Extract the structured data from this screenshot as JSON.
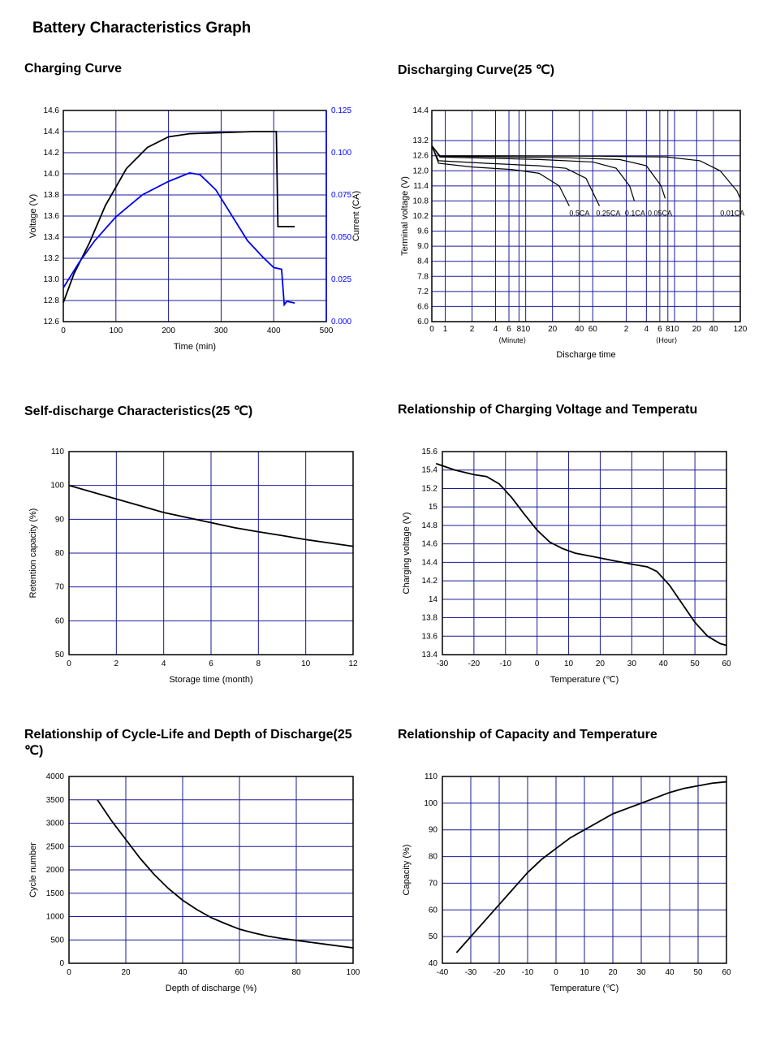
{
  "mainTitle": "Battery Characteristics Graph",
  "gridColor": "#1a1a99",
  "charts": {
    "charging": {
      "title": "Charging Curve",
      "type": "line-dual-axis",
      "xlabel": "Time (min)",
      "xlim": [
        0,
        500
      ],
      "xticks": [
        0,
        100,
        200,
        300,
        400,
        500
      ],
      "y1label": "Voltage (V)",
      "y1lim": [
        12.6,
        14.6
      ],
      "y1ticks": [
        12.6,
        12.8,
        13.0,
        13.2,
        13.4,
        13.6,
        13.8,
        14.0,
        14.2,
        14.4,
        14.6
      ],
      "y2label": "Current (CA)",
      "y2lim": [
        0,
        0.125
      ],
      "y2ticks": [
        0.0,
        0.025,
        0.05,
        0.075,
        0.1,
        0.125
      ],
      "voltage": {
        "color": "#000000",
        "pts": [
          [
            0,
            12.78
          ],
          [
            20,
            13.05
          ],
          [
            50,
            13.35
          ],
          [
            80,
            13.7
          ],
          [
            120,
            14.05
          ],
          [
            160,
            14.25
          ],
          [
            200,
            14.35
          ],
          [
            240,
            14.38
          ],
          [
            300,
            14.39
          ],
          [
            360,
            14.4
          ],
          [
            405,
            14.4
          ],
          [
            408,
            13.5
          ],
          [
            440,
            13.5
          ]
        ]
      },
      "current": {
        "color": "#0000ee",
        "pts": [
          [
            0,
            0.02
          ],
          [
            30,
            0.035
          ],
          [
            60,
            0.048
          ],
          [
            100,
            0.062
          ],
          [
            150,
            0.075
          ],
          [
            200,
            0.083
          ],
          [
            240,
            0.088
          ],
          [
            260,
            0.087
          ],
          [
            290,
            0.078
          ],
          [
            320,
            0.063
          ],
          [
            350,
            0.048
          ],
          [
            380,
            0.038
          ],
          [
            400,
            0.032
          ],
          [
            415,
            0.031
          ],
          [
            420,
            0.01
          ],
          [
            425,
            0.012
          ],
          [
            440,
            0.011
          ]
        ]
      }
    },
    "discharging": {
      "title": "Discharging Curve(25 ℃)",
      "type": "line-log-x",
      "xlabel": "Discharge time",
      "x_minute_label": "⟨Minute⟩",
      "x_hour_label": "⟨Hour⟩",
      "ylabel": "Terminal voltage (V)",
      "ylim": [
        6.0,
        14.4
      ],
      "yticks": [
        6.0,
        6.6,
        7.2,
        7.8,
        8.4,
        9.0,
        9.6,
        10.2,
        10.8,
        11.4,
        12.0,
        12.6,
        13.2,
        14.4
      ],
      "pixel_ticks": [
        [
          0,
          "0"
        ],
        [
          20,
          "1"
        ],
        [
          60,
          "2"
        ],
        [
          95,
          "4"
        ],
        [
          115,
          "6"
        ],
        [
          130,
          "8"
        ],
        [
          140,
          "10"
        ],
        [
          180,
          "20"
        ],
        [
          220,
          "40"
        ],
        [
          240,
          "60"
        ],
        [
          290,
          "2"
        ],
        [
          320,
          "4"
        ],
        [
          340,
          "6"
        ],
        [
          352,
          "8"
        ],
        [
          362,
          "10"
        ],
        [
          395,
          "20"
        ],
        [
          420,
          "40"
        ],
        [
          460,
          "120"
        ]
      ],
      "curves": [
        {
          "label": "0.5CA",
          "lx": 205,
          "ly": 232,
          "pts": [
            [
              0,
              13.0
            ],
            [
              10,
              12.3
            ],
            [
              60,
              12.15
            ],
            [
              120,
              12.05
            ],
            [
              160,
              11.9
            ],
            [
              190,
              11.4
            ],
            [
              205,
              10.6
            ]
          ]
        },
        {
          "label": "0.25CA",
          "lx": 245,
          "ly": 232,
          "pts": [
            [
              0,
              13.0
            ],
            [
              10,
              12.4
            ],
            [
              80,
              12.3
            ],
            [
              160,
              12.2
            ],
            [
              200,
              12.1
            ],
            [
              230,
              11.7
            ],
            [
              250,
              10.6
            ]
          ]
        },
        {
          "label": "0.1CA",
          "lx": 288,
          "ly": 228,
          "pts": [
            [
              0,
              13.0
            ],
            [
              12,
              12.55
            ],
            [
              160,
              12.45
            ],
            [
              240,
              12.35
            ],
            [
              275,
              12.1
            ],
            [
              295,
              11.4
            ],
            [
              302,
              10.8
            ]
          ]
        },
        {
          "label": "0.05CA",
          "lx": 322,
          "ly": 228,
          "pts": [
            [
              0,
              13.0
            ],
            [
              12,
              12.58
            ],
            [
              200,
              12.52
            ],
            [
              280,
              12.45
            ],
            [
              320,
              12.2
            ],
            [
              342,
              11.4
            ],
            [
              348,
              10.9
            ]
          ]
        },
        {
          "label": "0.01CA",
          "lx": 430,
          "ly": 228,
          "pts": [
            [
              0,
              13.0
            ],
            [
              12,
              12.6
            ],
            [
              250,
              12.58
            ],
            [
              350,
              12.55
            ],
            [
              400,
              12.4
            ],
            [
              430,
              12.0
            ],
            [
              455,
              11.2
            ],
            [
              460,
              10.9
            ]
          ]
        }
      ]
    },
    "selfDischarge": {
      "title": "Self-discharge Characteristics(25 ℃)",
      "type": "line",
      "xlabel": "Storage time (month)",
      "xlim": [
        0,
        12
      ],
      "xticks": [
        0,
        2,
        4,
        6,
        8,
        10,
        12
      ],
      "ylabel": "Retention capacity (%)",
      "ylim": [
        50,
        110
      ],
      "yticks": [
        50,
        60,
        70,
        80,
        90,
        100,
        110
      ],
      "pts": [
        [
          0,
          100
        ],
        [
          1,
          98
        ],
        [
          2,
          96
        ],
        [
          3,
          94
        ],
        [
          4,
          92
        ],
        [
          5,
          90.5
        ],
        [
          6,
          89
        ],
        [
          7,
          87.5
        ],
        [
          8,
          86.3
        ],
        [
          9,
          85.2
        ],
        [
          10,
          84
        ],
        [
          11,
          83
        ],
        [
          12,
          82
        ]
      ]
    },
    "chargeVoltTemp": {
      "title": "Relationship of Charging Voltage and Temperatu",
      "type": "line",
      "xlabel": "Temperature (℃)",
      "xlim": [
        -30,
        60
      ],
      "xticks": [
        -30,
        -20,
        -10,
        0,
        10,
        20,
        30,
        40,
        50,
        60
      ],
      "ylabel": "Charging voltage (V)",
      "ylim": [
        13.4,
        15.6
      ],
      "yticks": [
        13.4,
        13.6,
        13.8,
        14.0,
        14.2,
        14.4,
        14.6,
        14.8,
        15.0,
        15.2,
        15.4,
        15.6
      ],
      "pts": [
        [
          -32,
          15.47
        ],
        [
          -26,
          15.4
        ],
        [
          -20,
          15.35
        ],
        [
          -16,
          15.33
        ],
        [
          -12,
          15.25
        ],
        [
          -8,
          15.1
        ],
        [
          -4,
          14.92
        ],
        [
          0,
          14.75
        ],
        [
          4,
          14.62
        ],
        [
          8,
          14.55
        ],
        [
          12,
          14.5
        ],
        [
          18,
          14.46
        ],
        [
          24,
          14.42
        ],
        [
          30,
          14.38
        ],
        [
          35,
          14.35
        ],
        [
          38,
          14.3
        ],
        [
          42,
          14.15
        ],
        [
          46,
          13.95
        ],
        [
          50,
          13.75
        ],
        [
          54,
          13.6
        ],
        [
          58,
          13.52
        ],
        [
          60,
          13.5
        ]
      ]
    },
    "cycleLife": {
      "title": "Relationship of Cycle-Life and Depth of Discharge(25 ℃)",
      "type": "line",
      "xlabel": "Depth of discharge (%)",
      "xlim": [
        0,
        100
      ],
      "xticks": [
        0,
        20,
        40,
        60,
        80,
        100
      ],
      "ylabel": "Cycle number",
      "ylim": [
        0,
        4000
      ],
      "yticks": [
        0,
        500,
        1000,
        1500,
        2000,
        2500,
        3000,
        3500,
        4000
      ],
      "pts": [
        [
          10,
          3500
        ],
        [
          15,
          3050
        ],
        [
          20,
          2650
        ],
        [
          25,
          2250
        ],
        [
          30,
          1900
        ],
        [
          35,
          1600
        ],
        [
          40,
          1350
        ],
        [
          45,
          1150
        ],
        [
          50,
          980
        ],
        [
          55,
          850
        ],
        [
          60,
          730
        ],
        [
          65,
          650
        ],
        [
          70,
          580
        ],
        [
          75,
          530
        ],
        [
          80,
          490
        ],
        [
          85,
          450
        ],
        [
          90,
          410
        ],
        [
          95,
          370
        ],
        [
          100,
          330
        ]
      ]
    },
    "capacityTemp": {
      "title": "Relationship of Capacity and Temperature",
      "type": "line",
      "xlabel": "Temperature (℃)",
      "xlim": [
        -40,
        60
      ],
      "xticks": [
        -40,
        -30,
        -20,
        -10,
        0,
        10,
        20,
        30,
        40,
        50,
        60
      ],
      "ylabel": "Capacity (%)",
      "ylim": [
        40,
        110
      ],
      "yticks": [
        40,
        50,
        60,
        70,
        80,
        90,
        100,
        110
      ],
      "pts": [
        [
          -35,
          44
        ],
        [
          -30,
          50
        ],
        [
          -25,
          56
        ],
        [
          -20,
          62
        ],
        [
          -15,
          68
        ],
        [
          -10,
          74
        ],
        [
          -5,
          79
        ],
        [
          0,
          83
        ],
        [
          5,
          87
        ],
        [
          10,
          90
        ],
        [
          15,
          93
        ],
        [
          20,
          96
        ],
        [
          25,
          98
        ],
        [
          30,
          100
        ],
        [
          35,
          102
        ],
        [
          40,
          104
        ],
        [
          45,
          105.5
        ],
        [
          50,
          106.5
        ],
        [
          55,
          107.5
        ],
        [
          60,
          108
        ]
      ]
    }
  }
}
